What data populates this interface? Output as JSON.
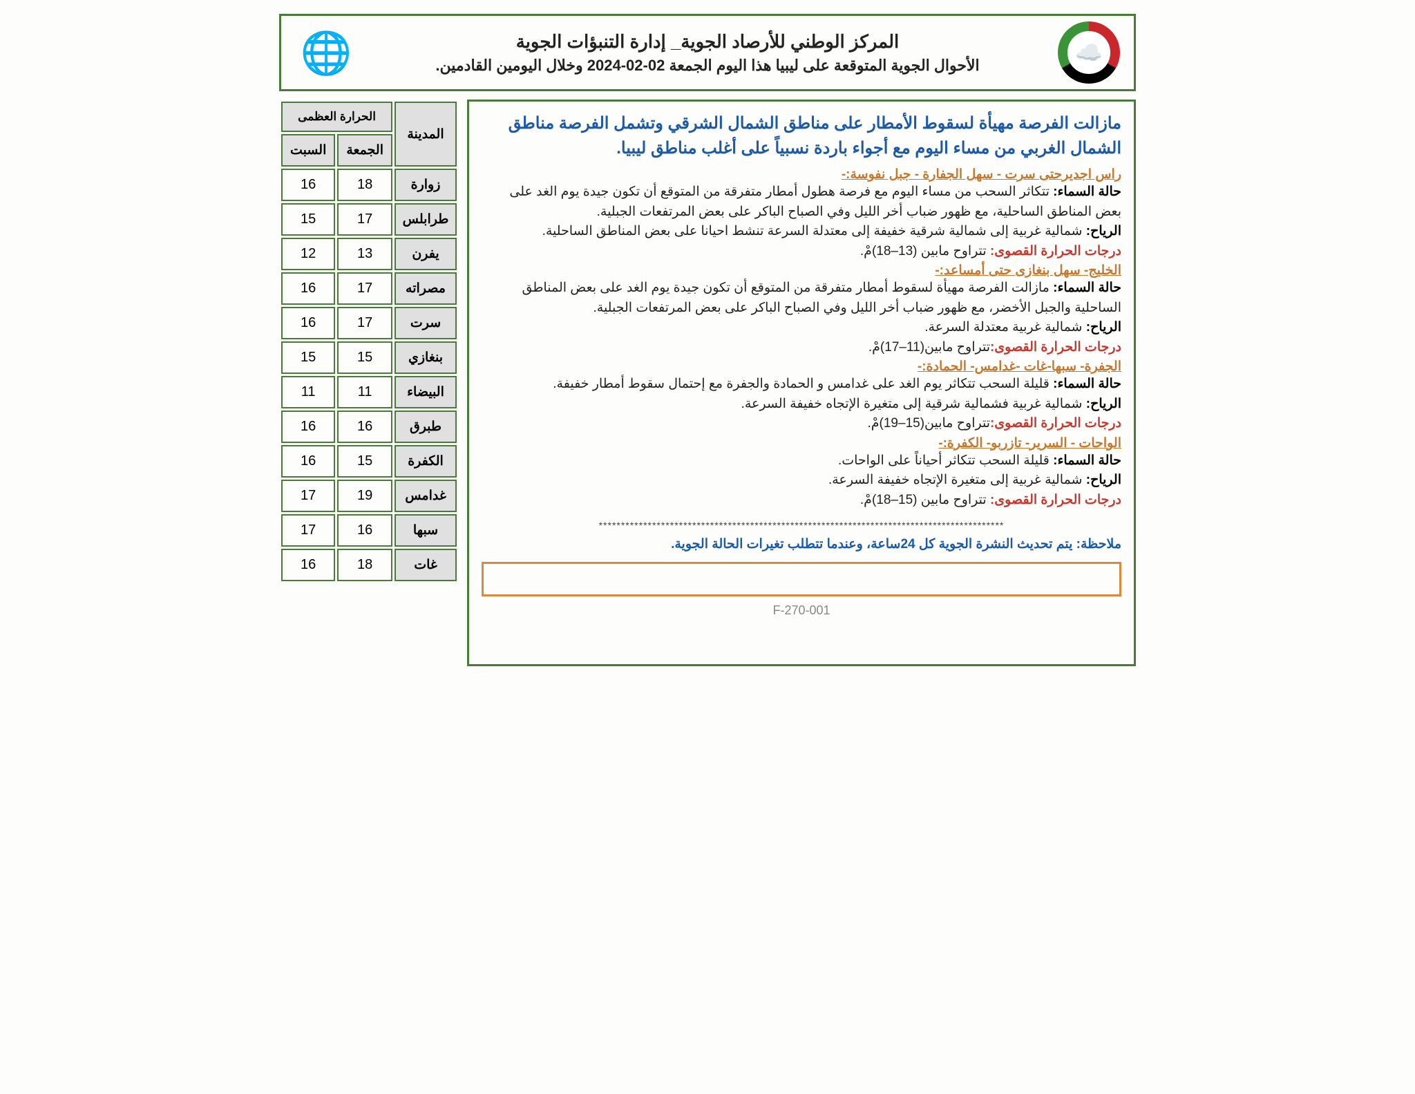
{
  "colors": {
    "border_green": "#4a7a3a",
    "border_orange": "#d98a3e",
    "text_blue": "#1a5aa8",
    "text_orange": "#c4792e",
    "text_red": "#c43a2e",
    "header_gray": "#e0e0e0",
    "background": "#fdfdfc"
  },
  "header": {
    "title": "المركز الوطني للأرصاد الجوية_ إدارة التنبؤات الجوية",
    "subtitle": "الأحوال الجوية المتوقعة على ليبيا هذا اليوم الجمعة 02-02-2024 وخلال اليومين القادمين."
  },
  "summary": "مازالت الفرصة مهيأة لسقوط الأمطار على مناطق الشمال الشرقي وتشمل الفرصة مناطق الشمال الغربي من مساء اليوم مع أجواء باردة نسبياً على أغلب مناطق ليبيا.",
  "regions": [
    {
      "head": "راس اجديرحتى سرت - سهل الجفارة - جبل نفوسة:-",
      "sky_label": "حالة السماء:",
      "sky": " تتكاثر السحب من مساء اليوم مع فرصة هطول أمطار متفرقة من المتوقع أن تكون جيدة يوم الغد على  بعض المناطق الساحلية، مع ظهور ضباب أخر الليل وفي الصباح الباكر على بعض المرتفعات الجبلية.",
      "wind_label": "الرياح:",
      "wind": " شمالية غربية إلى شمالية شرقية خفيفة إلى معتدلة السرعة تنشط احيانا على بعض المناطق الساحلية.",
      "temp_label": "درجات الحرارة القصوى:",
      "temp": " تتراوح مابين (13–18)مْ."
    },
    {
      "head": "الخليج- سهل بنغازى حتى أمساعد:-",
      "sky_label": "حالة السماء:",
      "sky": " مازالت الفرصة مهيأة لسقوط أمطار متفرقة من المتوقع أن تكون جيدة يوم الغد على بعض المناطق الساحلية والجبل الأخضر، مع ظهور ضباب أخر الليل وفي الصباح الباكر على بعض المرتفعات الجبلية.",
      "wind_label": "الرياح:",
      "wind": " شمالية غربية معتدلة السرعة.",
      "temp_label": "درجات الحرارة القصوى:",
      "temp": "تتراوح مابين(11–17)مْ."
    },
    {
      "head": "الجفرة- سبها-غات -غدامس- الحمادة:-",
      "sky_label": "حالة السماء:",
      "sky": " قليلة السحب تتكاثر يوم الغد على غدامس و الحمادة والجفرة مع إحتمال سقوط أمطار خفيفة.",
      "wind_label": "الرياح:",
      "wind": " شمالية غربية فشمالية شرقية إلى متغيرة الإتجاه خفيفة السرعة.",
      "temp_label": "درجات الحرارة القصوى:",
      "temp": "تتراوح مابين(15–19)مْ."
    },
    {
      "head": "الواحات - السرير- تازربو- الكفرة:-",
      "sky_label": "حالة السماء:",
      "sky": " قليلة السحب تتكاثر أحياناً على الواحات.",
      "wind_label": "الرياح:",
      "wind": " شمالية غربية إلى متغيرة الإتجاه خفيفة السرعة.",
      "temp_label": "درجات الحرارة القصوى:",
      "temp": " تتراوح مابين (15–18)مْ."
    }
  ],
  "stars": "*******************************************************************************************",
  "note": "ملاحظة: يتم تحديث النشرة الجوية كل 24ساعة، وعندما تتطلب تغيرات الحالة الجوية.",
  "footer_code": "F-270-001",
  "table": {
    "header_city": "المدينة",
    "header_max": "الحرارة العظمى",
    "header_fri": "الجمعة",
    "header_sat": "السبت",
    "rows": [
      {
        "city": "زوارة",
        "fri": "18",
        "sat": "16"
      },
      {
        "city": "طرابلس",
        "fri": "17",
        "sat": "15"
      },
      {
        "city": "يفرن",
        "fri": "13",
        "sat": "12"
      },
      {
        "city": "مصراته",
        "fri": "17",
        "sat": "16"
      },
      {
        "city": "سرت",
        "fri": "17",
        "sat": "16"
      },
      {
        "city": "بنغازي",
        "fri": "15",
        "sat": "15"
      },
      {
        "city": "البيضاء",
        "fri": "11",
        "sat": "11"
      },
      {
        "city": "طبرق",
        "fri": "16",
        "sat": "16"
      },
      {
        "city": "الكفرة",
        "fri": "15",
        "sat": "16"
      },
      {
        "city": "غدامس",
        "fri": "19",
        "sat": "17"
      },
      {
        "city": "سبها",
        "fri": "16",
        "sat": "17"
      },
      {
        "city": "غات",
        "fri": "18",
        "sat": "16"
      }
    ]
  }
}
